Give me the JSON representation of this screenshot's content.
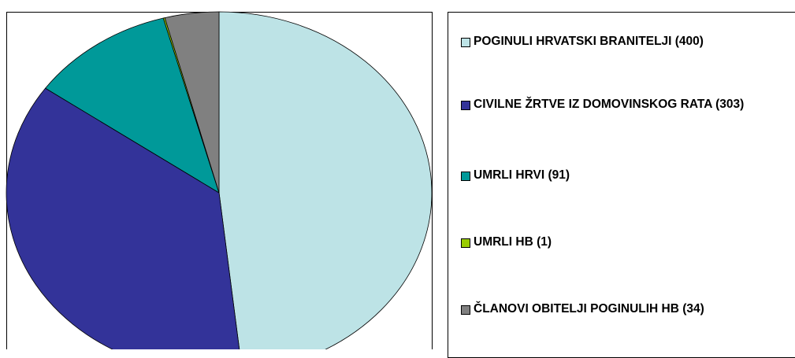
{
  "chart_data": {
    "type": "pie",
    "series": [
      {
        "name": "POGINULI HRVATSKI BRANITELJI (400)",
        "color": "#bde3e6",
        "values": [
          400
        ]
      },
      {
        "name": "CIVILNE ŽRTVE IZ DOMOVINSKOG RATA (303)",
        "color": "#333399",
        "values": [
          303
        ]
      },
      {
        "name": "UMRLI HRVI (91)",
        "color": "#009999",
        "values": [
          91
        ]
      },
      {
        "name": "UMRLI HB (1)",
        "color": "#99cc00",
        "values": [
          1
        ]
      },
      {
        "name": "ČLANOVI OBITELJI POGINULIH HB (34)",
        "color": "#808080",
        "values": [
          34
        ]
      }
    ]
  }
}
